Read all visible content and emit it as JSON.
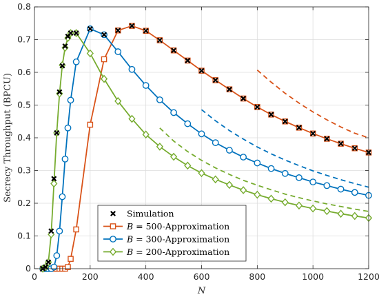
{
  "chart_data": {
    "type": "line",
    "xlabel": "N",
    "ylabel": "Secrecy Throughput (BPCU)",
    "xlim": [
      0,
      1200
    ],
    "ylim": [
      0,
      0.8
    ],
    "xticks": [
      0,
      200,
      400,
      600,
      800,
      1000,
      1200
    ],
    "yticks": [
      0,
      0.1,
      0.2,
      0.3,
      0.4,
      0.5,
      0.6,
      0.7,
      0.8
    ],
    "xtick_labels": [
      "0",
      "200",
      "400",
      "600",
      "800",
      "1000",
      "1200"
    ],
    "ytick_labels": [
      "0",
      "0.1",
      "0.2",
      "0.3",
      "0.4",
      "0.5",
      "0.6",
      "0.7",
      "0.8"
    ],
    "grid": true,
    "legend_position": "bottom-left",
    "legend": [
      {
        "math": "",
        "text": "Simulation",
        "marker": "x",
        "color": "#000000"
      },
      {
        "math": "B",
        "text": " = 500-Approximation",
        "marker": "square",
        "color": "#d95319"
      },
      {
        "math": "B",
        "text": " = 300-Approximation",
        "marker": "circle",
        "color": "#0072bd"
      },
      {
        "math": "B",
        "text": " = 200-Approximation",
        "marker": "diamond",
        "color": "#77ac30"
      }
    ],
    "series": [
      {
        "name": "B = 500-Approximation",
        "color": "#d95319",
        "marker": "square",
        "x": [
          30,
          40,
          50,
          60,
          70,
          80,
          90,
          100,
          110,
          120,
          130,
          150,
          200,
          250,
          300,
          350,
          400,
          450,
          500,
          550,
          600,
          650,
          700,
          750,
          800,
          850,
          900,
          950,
          1000,
          1050,
          1100,
          1150,
          1200
        ],
        "y": [
          0,
          0,
          0,
          0,
          0,
          0,
          0,
          0,
          0,
          0.005,
          0.03,
          0.12,
          0.44,
          0.64,
          0.728,
          0.742,
          0.727,
          0.698,
          0.667,
          0.636,
          0.605,
          0.576,
          0.548,
          0.52,
          0.494,
          0.471,
          0.45,
          0.431,
          0.413,
          0.397,
          0.382,
          0.368,
          0.355
        ]
      },
      {
        "name": "B = 300-Approximation",
        "color": "#0072bd",
        "marker": "circle",
        "x": [
          30,
          40,
          50,
          60,
          70,
          80,
          90,
          100,
          110,
          120,
          130,
          150,
          200,
          250,
          300,
          350,
          400,
          450,
          500,
          550,
          600,
          650,
          700,
          750,
          800,
          850,
          900,
          950,
          1000,
          1050,
          1100,
          1150,
          1200
        ],
        "y": [
          0,
          0,
          0,
          0,
          0.005,
          0.04,
          0.115,
          0.22,
          0.335,
          0.43,
          0.515,
          0.632,
          0.733,
          0.715,
          0.663,
          0.609,
          0.56,
          0.516,
          0.477,
          0.443,
          0.412,
          0.385,
          0.362,
          0.341,
          0.323,
          0.306,
          0.291,
          0.278,
          0.265,
          0.254,
          0.243,
          0.233,
          0.224
        ]
      },
      {
        "name": "B = 200-Approximation",
        "color": "#77ac30",
        "marker": "diamond",
        "x": [
          30,
          40,
          50,
          60,
          70,
          80,
          90,
          100,
          110,
          120,
          130,
          150,
          200,
          250,
          300,
          350,
          400,
          450,
          500,
          550,
          600,
          650,
          700,
          750,
          800,
          850,
          900,
          950,
          1000,
          1050,
          1100,
          1150,
          1200
        ],
        "y": [
          0,
          0.005,
          0.02,
          0.105,
          0.26,
          0.415,
          0.535,
          0.622,
          0.675,
          0.705,
          0.72,
          0.72,
          0.658,
          0.58,
          0.512,
          0.458,
          0.41,
          0.373,
          0.342,
          0.315,
          0.292,
          0.273,
          0.256,
          0.24,
          0.226,
          0.214,
          0.203,
          0.193,
          0.184,
          0.176,
          0.168,
          0.161,
          0.155
        ]
      },
      {
        "name": "Simulation",
        "color": "#000000",
        "marker": "x",
        "x": [
          30,
          40,
          50,
          60,
          70,
          80,
          90,
          100,
          110,
          120,
          130,
          150,
          200,
          250,
          300,
          350,
          400,
          450,
          500,
          550,
          600,
          650,
          700,
          750,
          800,
          850,
          900,
          950,
          1000,
          1050,
          1100,
          1150,
          1200
        ],
        "y": [
          0,
          0.005,
          0.02,
          0.115,
          0.275,
          0.415,
          0.54,
          0.62,
          0.68,
          0.71,
          0.72,
          0.72,
          0.733,
          0.715,
          0.728,
          0.742,
          0.727,
          0.698,
          0.667,
          0.636,
          0.605,
          0.576,
          0.548,
          0.52,
          0.494,
          0.471,
          0.45,
          0.431,
          0.413,
          0.397,
          0.382,
          0.368,
          0.355
        ]
      }
    ],
    "asymptotes": [
      {
        "color": "#d95319",
        "x": [
          800,
          850,
          900,
          950,
          1000,
          1050,
          1100,
          1150,
          1200
        ],
        "y": [
          0.607,
          0.57,
          0.536,
          0.506,
          0.479,
          0.455,
          0.433,
          0.414,
          0.4
        ]
      },
      {
        "color": "#0072bd",
        "x": [
          600,
          650,
          700,
          750,
          800,
          850,
          900,
          950,
          1000,
          1050,
          1100,
          1150,
          1200
        ],
        "y": [
          0.486,
          0.452,
          0.422,
          0.396,
          0.372,
          0.351,
          0.332,
          0.315,
          0.299,
          0.285,
          0.272,
          0.26,
          0.249
        ]
      },
      {
        "color": "#77ac30",
        "x": [
          450,
          500,
          550,
          600,
          650,
          700,
          750,
          800,
          850,
          900,
          950,
          1000,
          1050,
          1100,
          1150,
          1200
        ],
        "y": [
          0.43,
          0.39,
          0.358,
          0.331,
          0.308,
          0.288,
          0.27,
          0.255,
          0.241,
          0.228,
          0.217,
          0.207,
          0.198,
          0.19,
          0.182,
          0.175
        ]
      }
    ]
  }
}
